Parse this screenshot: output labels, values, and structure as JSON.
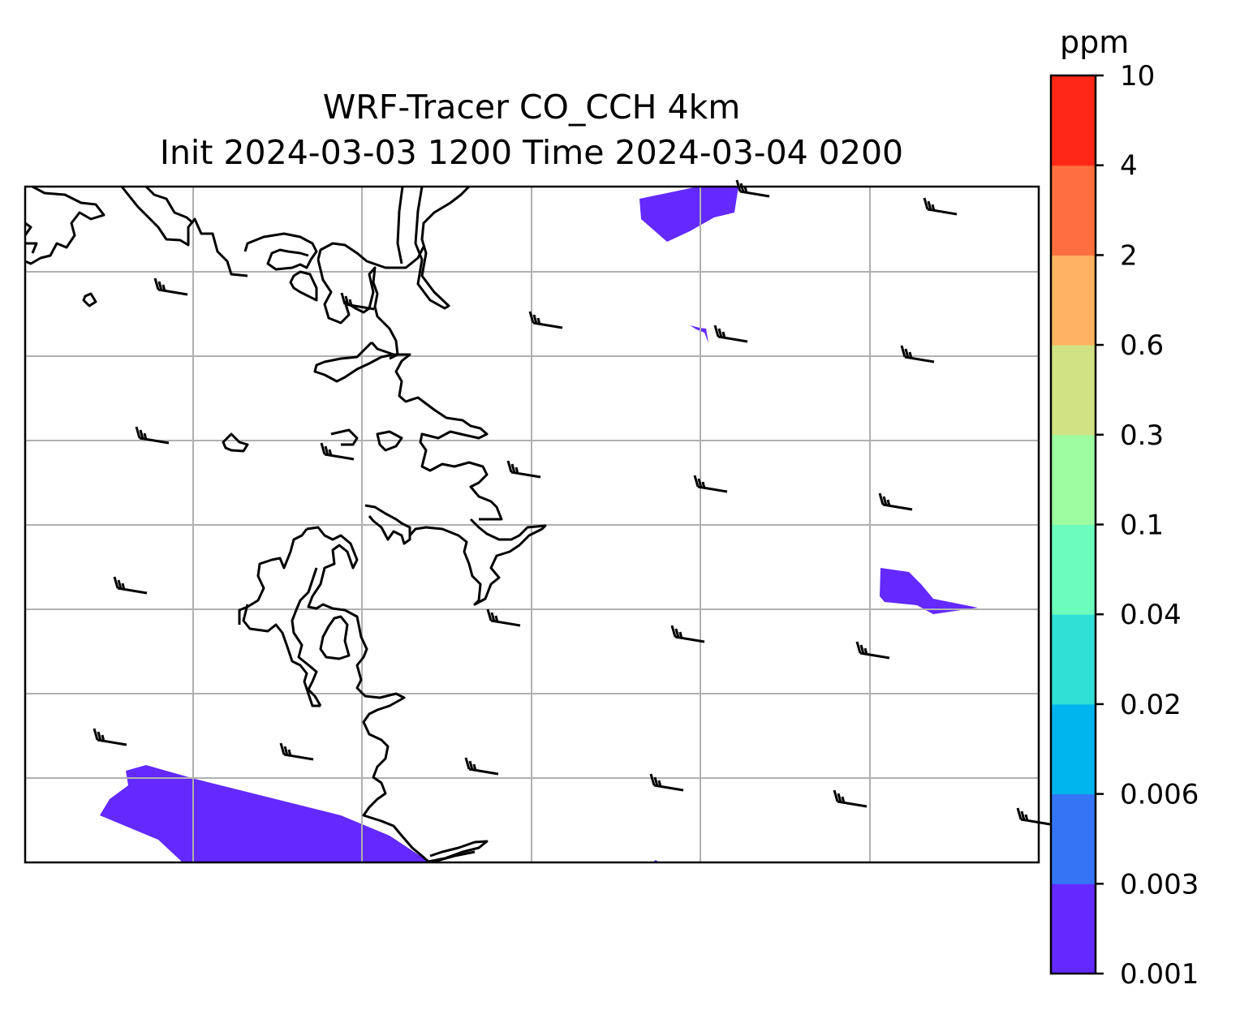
{
  "title": {
    "line1": "WRF-Tracer CO_CCH 4km",
    "line2": "Init 2024-03-03 1200 Time 2024-03-04 0200"
  },
  "colorbar": {
    "unit": "ppm",
    "levels": [
      "0.001",
      "0.003",
      "0.006",
      "0.02",
      "0.04",
      "0.1",
      "0.3",
      "0.6",
      "2",
      "4",
      "10"
    ],
    "colors": [
      "#6329ff",
      "#3574f5",
      "#00b4ee",
      "#2fe0d6",
      "#6cfcbd",
      "#9dfca0",
      "#d1e285",
      "#feb262",
      "#ff6e3e",
      "#ff2818"
    ]
  },
  "map": {
    "fill_color": "#6329ff",
    "gridline_color": "#b0b0b0",
    "coastline_color": "#000000",
    "wind_barbs_present": true
  }
}
